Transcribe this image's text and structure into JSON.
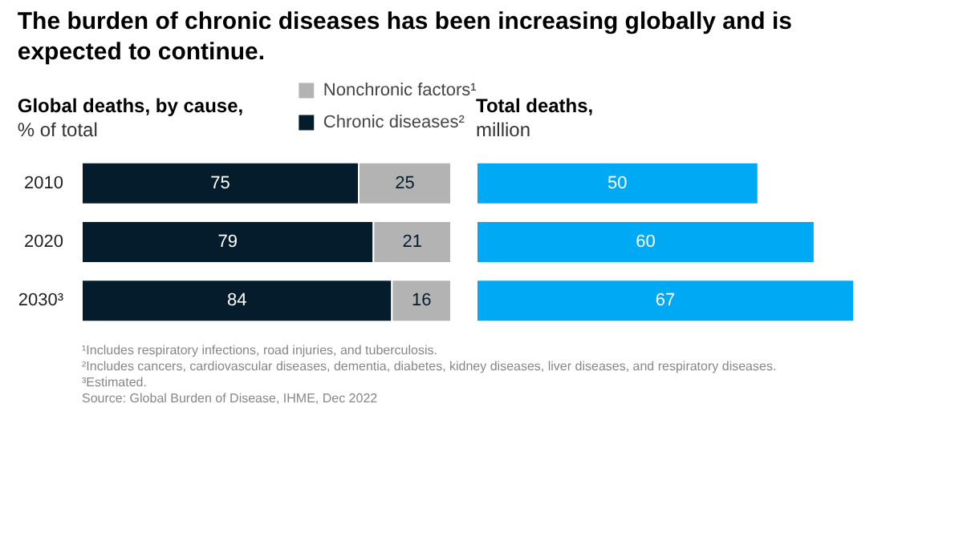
{
  "chart_data": [
    {
      "type": "bar",
      "orientation": "horizontal",
      "stacked": true,
      "title": "The burden of chronic diseases has been increasing globally and is expected to continue.",
      "subtitle": "Global deaths, by cause,\n% of total",
      "categories": [
        "2010",
        "2020",
        "2030³"
      ],
      "series": [
        {
          "name": "Chronic diseases²",
          "color": "#051c2c",
          "values": [
            75,
            79,
            84
          ]
        },
        {
          "name": "Nonchronic factors¹",
          "color": "#b3b3b3",
          "values": [
            25,
            21,
            16
          ]
        }
      ],
      "xlim": [
        0,
        100
      ],
      "data_labels": true,
      "legend": "top right",
      "tick_labels": "y",
      "grid": false,
      "annotations": [
        "¹Includes respiratory infections, road injuries, and tuberculosis.",
        "²Includes cancers, cardiovascular diseases, dementia, diabetes, kidney diseases, liver diseases, and respiratory diseases.",
        "³Estimated.",
        "Source: Global Burden of Disease, IHME, Dec 2022"
      ]
    },
    {
      "type": "bar",
      "orientation": "horizontal",
      "subtitle": "Total deaths,\nmillion",
      "categories": [
        null,
        null,
        null
      ],
      "values": [
        50,
        60,
        67
      ],
      "color": "#00a9f4",
      "data_labels": true,
      "tick_labels": false,
      "grid": false
    }
  ]
}
